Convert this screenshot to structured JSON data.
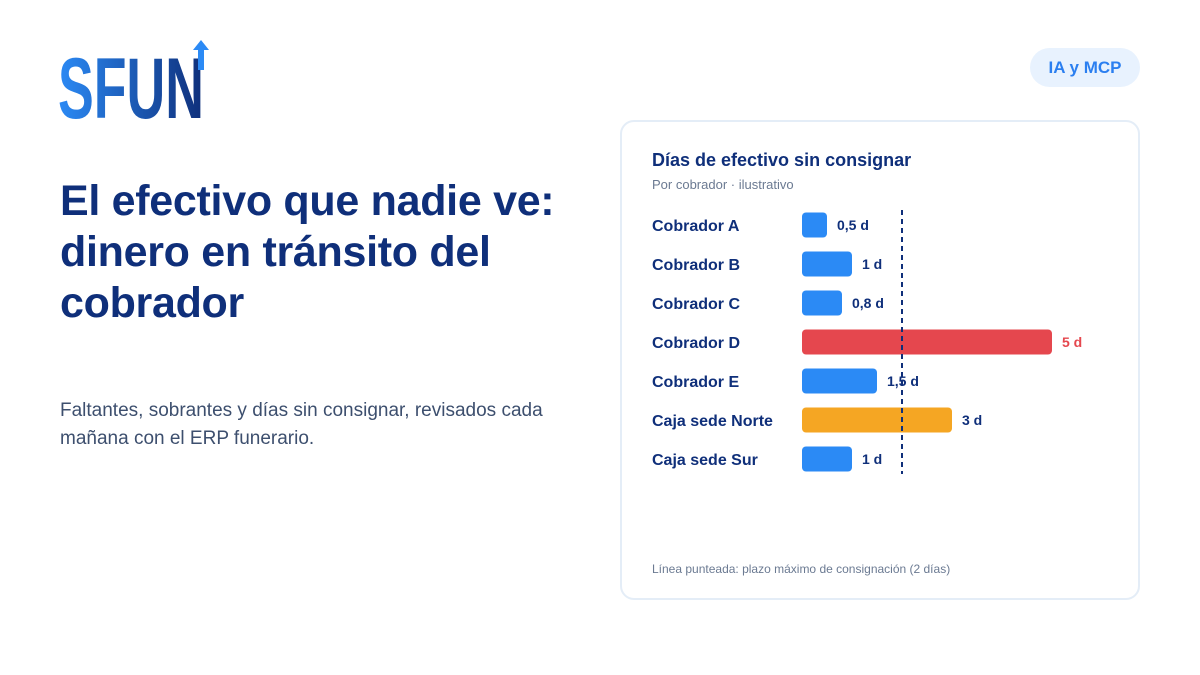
{
  "logo": {
    "text": "SFUN"
  },
  "badge": {
    "label": "IA y MCP"
  },
  "headline": "El efectivo que nadie ve: dinero en tránsito del cobrador",
  "subtitle": "Faltantes, sobrantes y días sin consignar, revisados cada mañana con el ERP funerario.",
  "colors": {
    "navy": "#0f2f7a",
    "blue": "#2b8af5",
    "red": "#e5474e",
    "orange": "#f5a623",
    "badge_bg": "#e8f2fe"
  },
  "chart_data": {
    "type": "bar",
    "orientation": "horizontal",
    "title": "Días de efectivo sin consignar",
    "subtitle": "Por cobrador · ilustrativo",
    "categories": [
      "Cobrador A",
      "Cobrador B",
      "Cobrador C",
      "Cobrador D",
      "Cobrador E",
      "Caja sede Norte",
      "Caja sede Sur"
    ],
    "values": [
      0.5,
      1,
      0.8,
      5,
      1.5,
      3,
      1
    ],
    "value_labels": [
      "0,5 d",
      "1 d",
      "0,8 d",
      "5 d",
      "1,5 d",
      "3 d",
      "1 d"
    ],
    "bar_colors": [
      "#2b8af5",
      "#2b8af5",
      "#2b8af5",
      "#e5474e",
      "#2b8af5",
      "#f5a623",
      "#2b8af5"
    ],
    "value_label_colors": [
      "#0f2f7a",
      "#0f2f7a",
      "#0f2f7a",
      "#e5474e",
      "#0f2f7a",
      "#0f2f7a",
      "#0f2f7a"
    ],
    "reference_line": {
      "value": 2,
      "style": "dashed"
    },
    "xlim": [
      0,
      5
    ],
    "footnote": "Línea punteada: plazo máximo de consignación (2 días)"
  }
}
